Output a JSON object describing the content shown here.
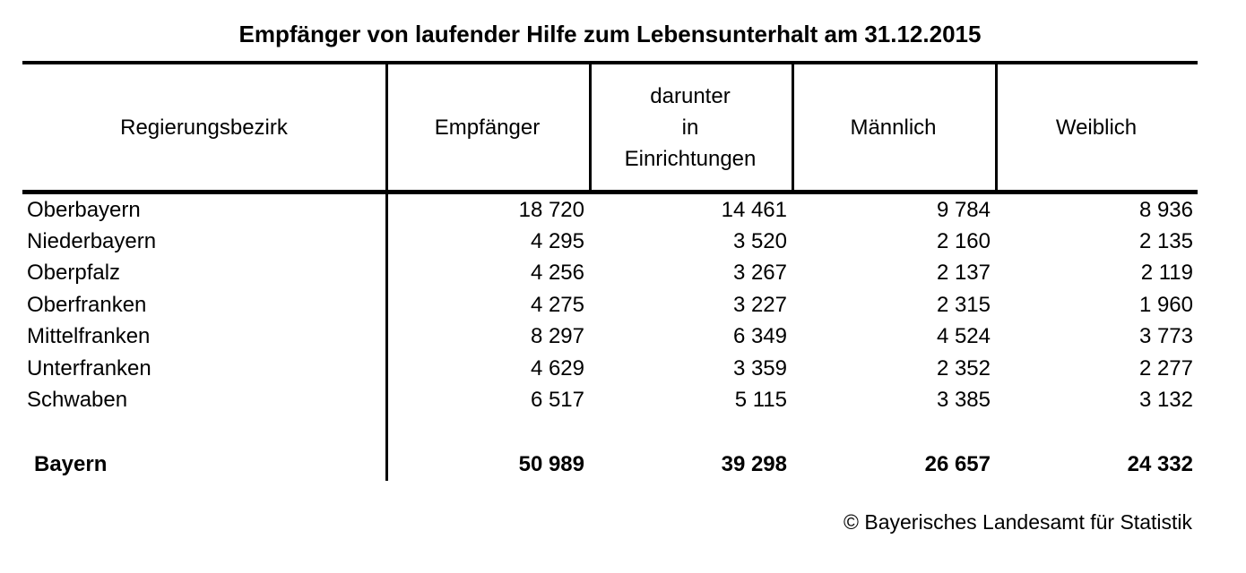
{
  "title": "Empfänger von laufender Hilfe zum Lebensunterhalt am 31.12.2015",
  "table": {
    "columns": {
      "region": "Regierungsbezirk",
      "recipients": "Empfänger",
      "in_facilities": "darunter\nin\nEinrichtungen",
      "male": "Männlich",
      "female": "Weiblich"
    },
    "rows": [
      {
        "name": "Oberbayern",
        "values": [
          "18 720",
          "14 461",
          "9 784",
          "8 936"
        ]
      },
      {
        "name": "Niederbayern",
        "values": [
          "4 295",
          "3 520",
          "2 160",
          "2 135"
        ]
      },
      {
        "name": "Oberpfalz",
        "values": [
          "4 256",
          "3 267",
          "2 137",
          "2 119"
        ]
      },
      {
        "name": "Oberfranken",
        "values": [
          "4 275",
          "3 227",
          "2 315",
          "1 960"
        ]
      },
      {
        "name": "Mittelfranken",
        "values": [
          "8 297",
          "6 349",
          "4 524",
          "3 773"
        ]
      },
      {
        "name": "Unterfranken",
        "values": [
          "4 629",
          "3 359",
          "2 352",
          "2 277"
        ]
      },
      {
        "name": "Schwaben",
        "values": [
          "6 517",
          "5 115",
          "3 385",
          "3 132"
        ]
      }
    ],
    "total": {
      "name": "Bayern",
      "values": [
        "50 989",
        "39 298",
        "26 657",
        "24 332"
      ]
    }
  },
  "footer": "© Bayerisches Landesamt für Statistik"
}
